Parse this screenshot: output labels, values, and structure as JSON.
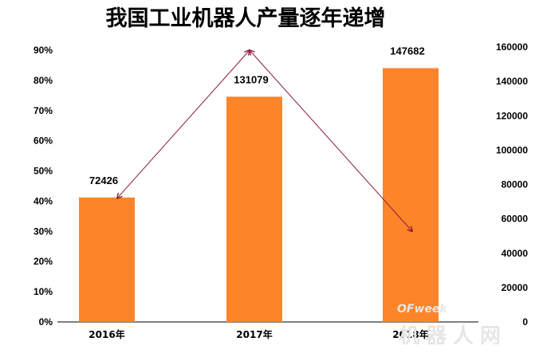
{
  "chart_data": {
    "type": "bar",
    "title": "我国工业机器人产量逐年递增",
    "categories": [
      "2016年",
      "2017年",
      "2018年"
    ],
    "series": [
      {
        "values": [
          72426,
          131079,
          147682
        ]
      }
    ],
    "data_labels": [
      "72426",
      "131079",
      "147682"
    ],
    "left_axis": {
      "ticks": [
        "0%",
        "10%",
        "20%",
        "30%",
        "40%",
        "50%",
        "60%",
        "70%",
        "80%",
        "90%"
      ],
      "ylim": [
        0,
        90
      ]
    },
    "right_axis": {
      "ticks": [
        "0",
        "20000",
        "40000",
        "60000",
        "80000",
        "100000",
        "120000",
        "140000",
        "160000"
      ],
      "ylim": [
        0,
        160000
      ]
    },
    "growth_line": {
      "values_percent": [
        41,
        90,
        30
      ]
    },
    "grid": false,
    "colors": {
      "bar": "#fd8429",
      "line": "#8b1a3a",
      "text": "#000000"
    }
  },
  "watermark": {
    "logo": "OFweek",
    "text": "机器人网"
  }
}
